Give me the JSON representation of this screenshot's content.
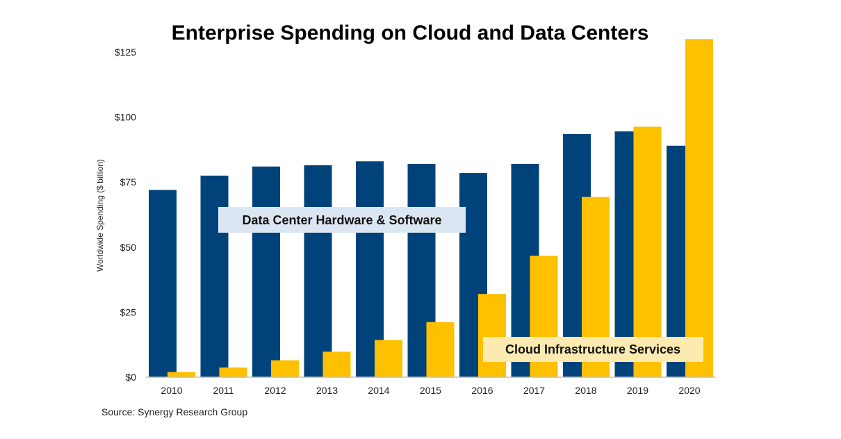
{
  "chart_data": {
    "type": "bar",
    "title": "Enterprise Spending on Cloud and Data Centers",
    "xlabel": "",
    "ylabel": "Worldwide Spending ($ billion)",
    "ylim": [
      0,
      125
    ],
    "yticks": [
      0,
      25,
      50,
      75,
      100,
      125
    ],
    "ytick_labels": [
      "$0",
      "$25",
      "$50",
      "$75",
      "$100",
      "$125"
    ],
    "grid": false,
    "categories": [
      "2010",
      "2011",
      "2012",
      "2013",
      "2014",
      "2015",
      "2016",
      "2017",
      "2018",
      "2019",
      "2020"
    ],
    "series": [
      {
        "name": "Data Center Hardware & Software",
        "color": "#00437a",
        "values": [
          72,
          77.5,
          81,
          81.5,
          83,
          82,
          78.5,
          82,
          93.5,
          94.5,
          89
        ]
      },
      {
        "name": "Cloud Infrastructure Services",
        "color": "#ffc000",
        "values": [
          2,
          3.7,
          6.5,
          9.8,
          14.3,
          21.2,
          32,
          46.7,
          69.3,
          96.3,
          130
        ]
      }
    ],
    "annotations": [
      {
        "text": "Data Center Hardware & Software",
        "series": 0,
        "background": "#dce6f2"
      },
      {
        "text": "Cloud Infrastructure Services",
        "series": 1,
        "background": "#fdeab0"
      }
    ],
    "source": "Source: Synergy Research Group"
  }
}
